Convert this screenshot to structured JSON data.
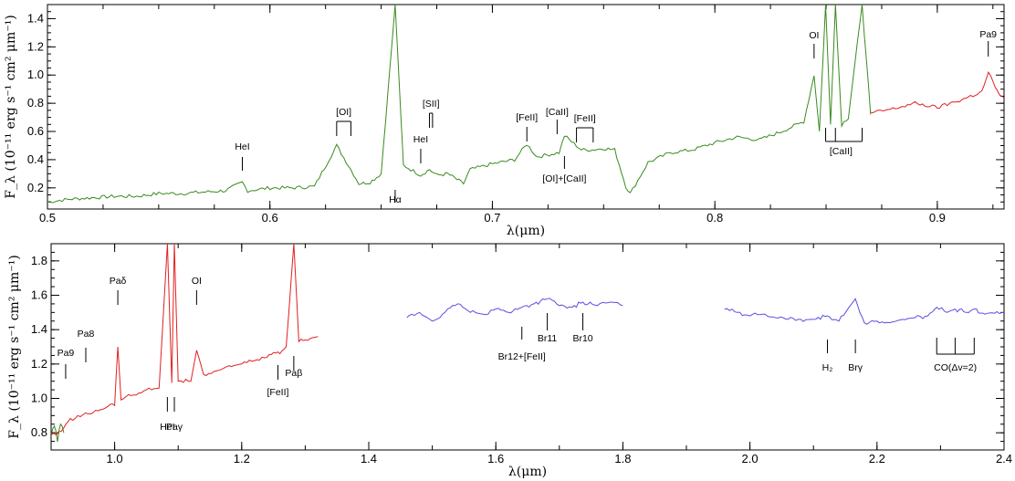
{
  "chart_data": [
    {
      "type": "line",
      "panel": "top",
      "xlabel": "λ(μm)",
      "ylabel": "F_λ (10⁻¹¹ erg s⁻¹ cm² μm⁻¹)",
      "xlim": [
        0.5,
        0.93
      ],
      "ylim": [
        0.05,
        1.5
      ],
      "xticks": [
        0.5,
        0.6,
        0.7,
        0.8,
        0.9
      ],
      "yticks": [
        0.2,
        0.4,
        0.6,
        0.8,
        1.0,
        1.2,
        1.4
      ],
      "x_tick_labels": [
        "0.5",
        "0.6",
        "0.7",
        "0.8",
        "0.9"
      ],
      "y_tick_labels": [
        "0.2",
        "0.4",
        "0.6",
        "0.8",
        "1.0",
        "1.2",
        "1.4"
      ],
      "series": [
        {
          "color": "#3a8a1f",
          "x": [
            0.5,
            0.51,
            0.52,
            0.53,
            0.54,
            0.55,
            0.56,
            0.57,
            0.58,
            0.5876,
            0.59,
            0.6,
            0.61,
            0.62,
            0.63,
            0.6364,
            0.64,
            0.645,
            0.65,
            0.6563,
            0.66,
            0.6678,
            0.6717,
            0.675,
            0.68,
            0.687,
            0.69,
            0.7,
            0.71,
            0.7155,
            0.72,
            0.73,
            0.7324,
            0.74,
            0.745,
            0.75,
            0.755,
            0.76,
            0.762,
            0.77,
            0.78,
            0.79,
            0.8,
            0.81,
            0.82,
            0.83,
            0.84,
            0.8446,
            0.847,
            0.8498,
            0.852,
            0.8542,
            0.857,
            0.86,
            0.8662,
            0.87
          ],
          "y": [
            0.1,
            0.12,
            0.13,
            0.14,
            0.14,
            0.16,
            0.16,
            0.17,
            0.18,
            0.24,
            0.18,
            0.2,
            0.2,
            0.21,
            0.5,
            0.33,
            0.23,
            0.24,
            0.3,
            1.5,
            0.36,
            0.29,
            0.33,
            0.29,
            0.3,
            0.23,
            0.33,
            0.37,
            0.4,
            0.51,
            0.42,
            0.45,
            0.57,
            0.47,
            0.47,
            0.48,
            0.47,
            0.21,
            0.16,
            0.38,
            0.45,
            0.47,
            0.52,
            0.56,
            0.54,
            0.6,
            0.67,
            1.0,
            0.6,
            1.5,
            0.65,
            1.5,
            0.65,
            0.7,
            1.5,
            0.72
          ]
        },
        {
          "color": "#e02020",
          "x": [
            0.87,
            0.88,
            0.89,
            0.9,
            0.91,
            0.915,
            0.92,
            0.923,
            0.927,
            0.93
          ],
          "y": [
            0.73,
            0.76,
            0.8,
            0.77,
            0.82,
            0.85,
            0.88,
            1.02,
            0.88,
            0.84
          ]
        }
      ],
      "annotations": [
        {
          "label": "HeI",
          "x": 0.5876
        },
        {
          "label": "[OI]",
          "x": [
            0.63,
            0.6364
          ]
        },
        {
          "label": "Hα",
          "x": 0.6563
        },
        {
          "label": "HeI",
          "x": 0.6678
        },
        {
          "label": "[SII]",
          "x": [
            0.6717,
            0.6731
          ]
        },
        {
          "label": "[FeII]",
          "x": 0.7155
        },
        {
          "label": "[CaII]",
          "x": 0.7291
        },
        {
          "label": "[FeII]",
          "x": [
            0.7378,
            0.7453
          ]
        },
        {
          "label": "[OI]+[CaII]",
          "x": 0.7324
        },
        {
          "label": "OI",
          "x": 0.8446
        },
        {
          "label": "[CaII]",
          "x": [
            0.8498,
            0.8542,
            0.8662
          ]
        },
        {
          "label": "Pa9",
          "x": 0.9229
        }
      ]
    },
    {
      "type": "line",
      "panel": "bottom",
      "xlabel": "λ(μm)",
      "ylabel": "F_λ (10⁻¹¹ erg s⁻¹ cm² μm⁻¹)",
      "xlim": [
        0.9,
        2.4
      ],
      "ylim": [
        0.7,
        1.9
      ],
      "xticks": [
        1.0,
        1.2,
        1.4,
        1.6,
        1.8,
        2.0,
        2.2,
        2.4
      ],
      "yticks": [
        0.8,
        1.0,
        1.2,
        1.4,
        1.6,
        1.8
      ],
      "x_tick_labels": [
        "1.0",
        "1.2",
        "1.4",
        "1.6",
        "1.8",
        "2.0",
        "2.2",
        "2.4"
      ],
      "y_tick_labels": [
        "0.8",
        "1.0",
        "1.2",
        "1.4",
        "1.6",
        "1.8"
      ],
      "series": [
        {
          "color": "#3a8a1f",
          "x": [
            0.9,
            0.905,
            0.91,
            0.915,
            0.92
          ],
          "y": [
            0.78,
            0.84,
            0.76,
            0.85,
            0.8
          ]
        },
        {
          "color": "#e02020",
          "x": [
            0.9,
            0.92,
            0.93,
            0.95,
            0.97,
            1.0,
            1.005,
            1.01,
            1.03,
            1.05,
            1.07,
            1.083,
            1.09,
            1.094,
            1.1,
            1.12,
            1.129,
            1.14,
            1.16,
            1.18,
            1.2,
            1.22,
            1.24,
            1.257,
            1.26,
            1.27,
            1.282,
            1.29,
            1.3,
            1.32
          ],
          "y": [
            0.78,
            0.82,
            0.88,
            0.9,
            0.93,
            0.97,
            1.3,
            1.0,
            1.02,
            1.05,
            1.06,
            1.9,
            1.09,
            1.9,
            1.1,
            1.1,
            1.28,
            1.14,
            1.16,
            1.19,
            1.2,
            1.22,
            1.24,
            1.27,
            1.26,
            1.3,
            1.9,
            1.33,
            1.34,
            1.36
          ]
        },
        {
          "color": "#5a4fe0",
          "x": [
            1.46,
            1.48,
            1.5,
            1.52,
            1.54,
            1.56,
            1.58,
            1.6,
            1.62,
            1.641,
            1.66,
            1.681,
            1.7,
            1.72,
            1.737,
            1.76,
            1.78,
            1.8
          ],
          "y": [
            1.47,
            1.5,
            1.45,
            1.5,
            1.55,
            1.5,
            1.49,
            1.52,
            1.5,
            1.53,
            1.55,
            1.58,
            1.54,
            1.53,
            1.56,
            1.54,
            1.56,
            1.54
          ]
        },
        {
          "color": "#5a4fe0",
          "x": [
            1.96,
            1.98,
            2.0,
            2.02,
            2.04,
            2.06,
            2.08,
            2.1,
            2.122,
            2.14,
            2.166,
            2.18,
            2.2,
            2.22,
            2.24,
            2.26,
            2.28,
            2.294,
            2.31,
            2.323,
            2.34,
            2.353,
            2.37,
            2.4
          ],
          "y": [
            1.52,
            1.5,
            1.48,
            1.49,
            1.47,
            1.46,
            1.46,
            1.46,
            1.48,
            1.45,
            1.58,
            1.44,
            1.45,
            1.44,
            1.46,
            1.47,
            1.48,
            1.53,
            1.5,
            1.52,
            1.5,
            1.52,
            1.49,
            1.5
          ]
        }
      ],
      "annotations": [
        {
          "label": "Pa9",
          "x": 0.9229
        },
        {
          "label": "Pa8",
          "x": 0.9546
        },
        {
          "label": "Paδ",
          "x": 1.005
        },
        {
          "label": "HeI",
          "x": 1.083
        },
        {
          "label": "Paγ",
          "x": 1.094
        },
        {
          "label": "OI",
          "x": 1.129
        },
        {
          "label": "[FeII]",
          "x": 1.257
        },
        {
          "label": "Paβ",
          "x": 1.282
        },
        {
          "label": "Br12+[FeII]",
          "x": 1.641
        },
        {
          "label": "Br11",
          "x": 1.681
        },
        {
          "label": "Br10",
          "x": 1.737
        },
        {
          "label": "H₂",
          "x": 2.122
        },
        {
          "label": "Brγ",
          "x": 2.166
        },
        {
          "label": "CO(Δv=2)",
          "x": [
            2.294,
            2.323,
            2.353
          ]
        }
      ]
    }
  ]
}
